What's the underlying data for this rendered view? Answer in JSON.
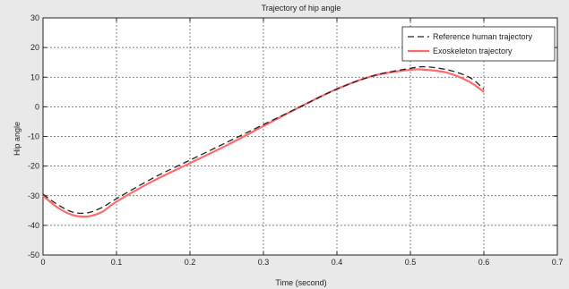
{
  "chart_data": {
    "type": "line",
    "title": "Trajectory of hip angle",
    "xlabel": "Time (second)",
    "ylabel": "Hip angle",
    "xlim": [
      0,
      0.7
    ],
    "ylim": [
      -50,
      30
    ],
    "xticks": [
      0,
      0.1,
      0.2,
      0.3,
      0.4,
      0.5,
      0.6,
      0.7
    ],
    "xtick_labels": [
      "0",
      "0.1",
      "0.2",
      "0.3",
      "0.4",
      "0.5",
      "0.6",
      "0.7"
    ],
    "yticks": [
      -50,
      -40,
      -30,
      -20,
      -10,
      0,
      10,
      20,
      30
    ],
    "ytick_labels": [
      "-50",
      "-40",
      "-30",
      "-20",
      "-10",
      "0",
      "10",
      "20",
      "30"
    ],
    "grid": true,
    "legend_position": "top-right",
    "series": [
      {
        "name": "Reference human trajectory",
        "color": "#222222",
        "dash": "dashed",
        "x": [
          0,
          0.02,
          0.04,
          0.06,
          0.08,
          0.1,
          0.15,
          0.2,
          0.25,
          0.3,
          0.35,
          0.4,
          0.45,
          0.5,
          0.52,
          0.55,
          0.58,
          0.6
        ],
        "y": [
          -29.5,
          -33,
          -35.5,
          -35.8,
          -34,
          -31,
          -24,
          -18,
          -12,
          -6,
          0,
          6,
          10.5,
          13,
          13.5,
          12.5,
          10,
          6
        ]
      },
      {
        "name": "Exoskeleton trajectory",
        "color": "#ff6b6b",
        "dash": "solid",
        "x": [
          0,
          0.02,
          0.04,
          0.06,
          0.08,
          0.1,
          0.15,
          0.2,
          0.25,
          0.3,
          0.35,
          0.4,
          0.45,
          0.5,
          0.52,
          0.55,
          0.58,
          0.6
        ],
        "y": [
          -30,
          -34,
          -36.5,
          -37,
          -35.5,
          -32,
          -25,
          -19,
          -13,
          -6.5,
          0,
          6,
          10.5,
          12.5,
          12.5,
          11.5,
          8.5,
          5
        ]
      }
    ]
  }
}
